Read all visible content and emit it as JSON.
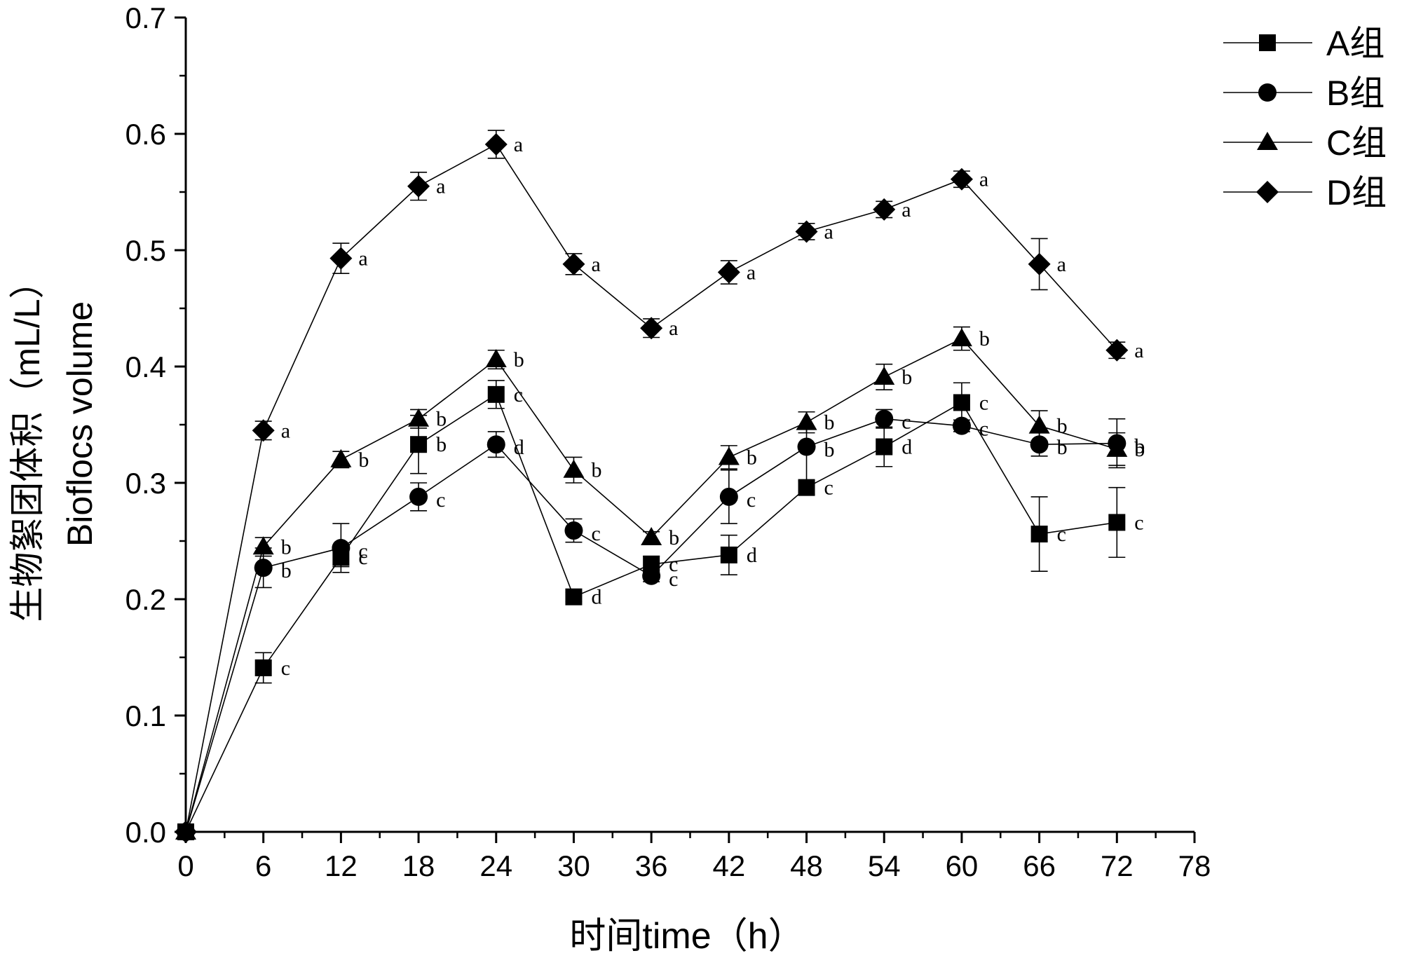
{
  "chart_data": {
    "type": "line",
    "xlabel": "时间time（h）",
    "ylabel_cn": "生物絮团体积（mL/L）",
    "ylabel_en": "Bioflocs volume",
    "xlim": [
      0,
      78
    ],
    "ylim": [
      0,
      0.7
    ],
    "xticks": [
      "0",
      "6",
      "12",
      "18",
      "24",
      "30",
      "36",
      "42",
      "48",
      "54",
      "60",
      "66",
      "72",
      "78"
    ],
    "yticks": [
      "0.0",
      "0.1",
      "0.2",
      "0.3",
      "0.4",
      "0.5",
      "0.6",
      "0.7"
    ],
    "grid": false,
    "legend_position": "top-right",
    "x": [
      0,
      6,
      12,
      18,
      24,
      30,
      36,
      42,
      48,
      54,
      60,
      66,
      72
    ],
    "series": [
      {
        "name": "A组",
        "marker": "square",
        "values": [
          0,
          0.141,
          0.236,
          0.333,
          0.376,
          0.202,
          0.23,
          0.238,
          0.296,
          0.331,
          0.369,
          0.256,
          0.266
        ],
        "errors": [
          0,
          0.013,
          0.008,
          0.025,
          0.012,
          0.004,
          0.007,
          0.017,
          0.006,
          0.017,
          0.017,
          0.032,
          0.03
        ],
        "labels": [
          "",
          "c",
          "c",
          "b",
          "c",
          "d",
          "c",
          "d",
          "c",
          "d",
          "c",
          "c",
          "c"
        ]
      },
      {
        "name": "B组",
        "marker": "circle",
        "values": [
          0,
          0.227,
          0.244,
          0.288,
          0.333,
          0.259,
          0.22,
          0.288,
          0.331,
          0.355,
          0.349,
          0.333,
          0.334
        ],
        "errors": [
          0,
          0.017,
          0.021,
          0.012,
          0.011,
          0.01,
          0.005,
          0.023,
          0.03,
          0.008,
          0.005,
          0.01,
          0.021
        ],
        "labels": [
          "",
          "b",
          "c",
          "c",
          "d",
          "c",
          "c",
          "c",
          "b",
          "c",
          "c",
          "b",
          "b"
        ]
      },
      {
        "name": "C组",
        "marker": "triangle",
        "values": [
          0,
          0.245,
          0.32,
          0.355,
          0.406,
          0.311,
          0.253,
          0.322,
          0.352,
          0.391,
          0.424,
          0.349,
          0.329
        ],
        "errors": [
          0,
          0.008,
          0.007,
          0.008,
          0.008,
          0.011,
          0.005,
          0.01,
          0.009,
          0.011,
          0.01,
          0.013,
          0.014
        ],
        "labels": [
          "",
          "b",
          "b",
          "b",
          "b",
          "b",
          "b",
          "b",
          "b",
          "b",
          "b",
          "b",
          "b"
        ]
      },
      {
        "name": "D组",
        "marker": "diamond",
        "values": [
          0,
          0.345,
          0.493,
          0.555,
          0.591,
          0.488,
          0.433,
          0.481,
          0.516,
          0.535,
          0.561,
          0.488,
          0.414
        ],
        "errors": [
          0,
          0.008,
          0.013,
          0.012,
          0.012,
          0.009,
          0.008,
          0.01,
          0.007,
          0.007,
          0.007,
          0.022,
          0.007
        ],
        "labels": [
          "",
          "a",
          "a",
          "a",
          "a",
          "a",
          "a",
          "a",
          "a",
          "a",
          "a",
          "a",
          "a"
        ]
      }
    ]
  }
}
